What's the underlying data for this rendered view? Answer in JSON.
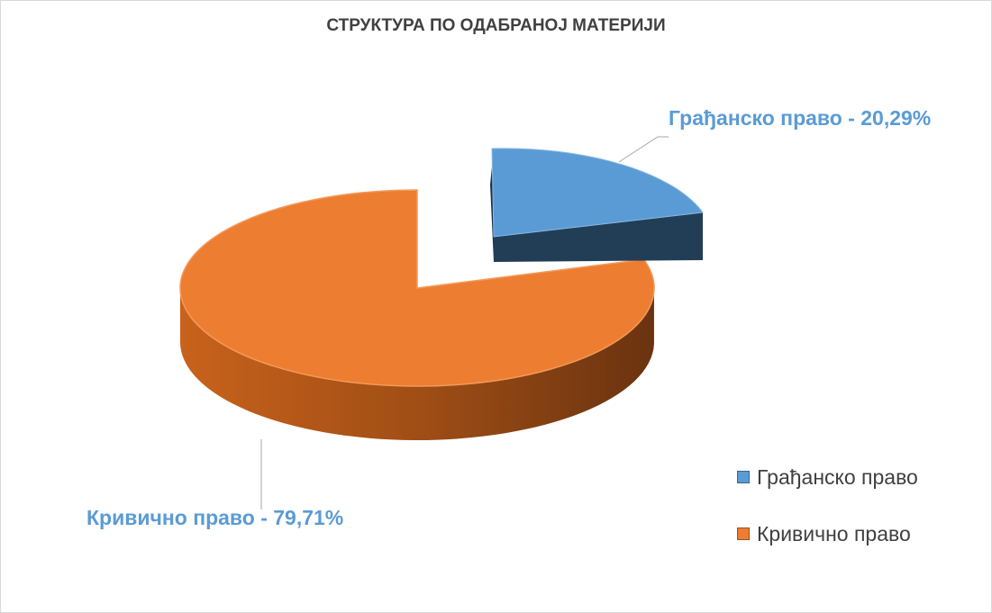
{
  "chart_data": {
    "type": "pie",
    "title": "СТРУКТУРА ПО ОДАБРАНОЈ МАТЕРИЈИ",
    "categories": [
      "Грађанско право",
      "Кривично право"
    ],
    "values": [
      20.29,
      79.71
    ],
    "unit": "%",
    "data_labels": [
      "Грађанско право - 20,29%",
      "Кривично право - 79,71%"
    ],
    "legend": {
      "position": "bottom-right",
      "entries": [
        "Грађанско право",
        "Кривично право"
      ]
    },
    "colors": {
      "civil_top": "#5b9bd5",
      "civil_side": "#223e57",
      "criminal_top": "#ed7d31",
      "criminal_side": "#7a3b10",
      "label_text": "#5b9bd5"
    },
    "style": "3d-exploded"
  }
}
